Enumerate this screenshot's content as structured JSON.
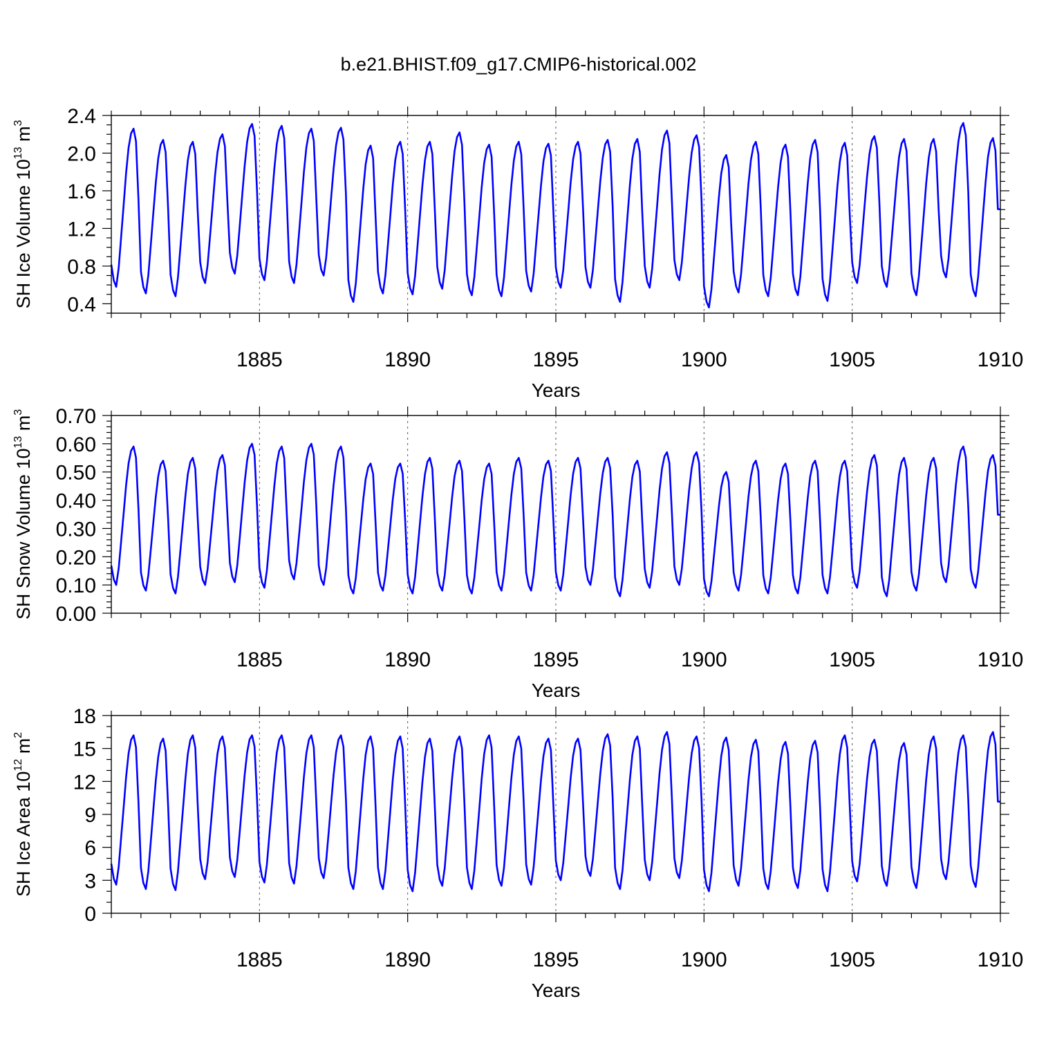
{
  "title": "b.e21.BHIST.f09_g17.CMIP6-historical.002",
  "colors": {
    "series": "#0000ff",
    "axis": "#000000",
    "grid": "#555555"
  },
  "chart_data": [
    {
      "type": "line",
      "name": "ice-volume",
      "ylabel": {
        "main": "SH Ice Volume 10",
        "sup": "13",
        "unit": " m",
        "unit_sup": "3"
      },
      "xlabel": "Years",
      "xlim": [
        1880.0,
        1910.0
      ],
      "ylim": [
        0.3,
        2.4
      ],
      "yticks": [
        "0.4",
        "0.8",
        "1.2",
        "1.6",
        "2.0",
        "2.4"
      ],
      "ytick_values": [
        0.4,
        0.8,
        1.2,
        1.6,
        2.0,
        2.4
      ],
      "yminor_step": 0.1,
      "xticks": [
        "1885",
        "1890",
        "1895",
        "1900",
        "1905",
        "1910"
      ],
      "xtick_values": [
        1885,
        1890,
        1895,
        1900,
        1905,
        1910
      ],
      "grid": "dashed vertical at major x ticks",
      "annual": {
        "min": [
          0.58,
          0.51,
          0.48,
          0.62,
          0.72,
          0.65,
          0.62,
          0.7,
          0.42,
          0.51,
          0.5,
          0.56,
          0.49,
          0.48,
          0.53,
          0.57,
          0.57,
          0.42,
          0.57,
          0.65,
          0.36,
          0.52,
          0.48,
          0.49,
          0.43,
          0.62,
          0.58,
          0.49,
          0.68,
          0.48
        ],
        "max": [
          2.26,
          2.14,
          2.12,
          2.2,
          2.31,
          2.29,
          2.26,
          2.27,
          2.08,
          2.12,
          2.12,
          2.22,
          2.09,
          2.12,
          2.1,
          2.12,
          2.14,
          2.15,
          2.24,
          2.19,
          1.98,
          2.12,
          2.09,
          2.14,
          2.11,
          2.18,
          2.15,
          2.15,
          2.32,
          2.16
        ]
      }
    },
    {
      "type": "line",
      "name": "snow-volume",
      "ylabel": {
        "main": "SH Snow Volume 10",
        "sup": "13",
        "unit": " m",
        "unit_sup": "3"
      },
      "xlabel": "Years",
      "xlim": [
        1880.0,
        1910.0
      ],
      "ylim": [
        0.0,
        0.7
      ],
      "yticks": [
        "0.00",
        "0.10",
        "0.20",
        "0.30",
        "0.40",
        "0.50",
        "0.60",
        "0.70"
      ],
      "ytick_values": [
        0.0,
        0.1,
        0.2,
        0.3,
        0.4,
        0.5,
        0.6,
        0.7
      ],
      "yminor_step": 0.02,
      "xticks": [
        "1885",
        "1890",
        "1895",
        "1900",
        "1905",
        "1910"
      ],
      "xtick_values": [
        1885,
        1890,
        1895,
        1900,
        1905,
        1910
      ],
      "grid": "dashed vertical at major x ticks",
      "annual": {
        "min": [
          0.1,
          0.08,
          0.07,
          0.1,
          0.11,
          0.09,
          0.12,
          0.1,
          0.07,
          0.08,
          0.07,
          0.08,
          0.07,
          0.08,
          0.08,
          0.08,
          0.1,
          0.06,
          0.09,
          0.1,
          0.06,
          0.08,
          0.07,
          0.07,
          0.07,
          0.09,
          0.06,
          0.08,
          0.11,
          0.09
        ],
        "max": [
          0.59,
          0.54,
          0.55,
          0.56,
          0.6,
          0.59,
          0.6,
          0.59,
          0.53,
          0.53,
          0.55,
          0.54,
          0.53,
          0.55,
          0.54,
          0.55,
          0.55,
          0.54,
          0.57,
          0.57,
          0.5,
          0.54,
          0.53,
          0.54,
          0.54,
          0.56,
          0.55,
          0.55,
          0.59,
          0.56
        ]
      }
    },
    {
      "type": "line",
      "name": "ice-area",
      "ylabel": {
        "main": "SH Ice Area 10",
        "sup": "12",
        "unit": " m",
        "unit_sup": "2"
      },
      "xlabel": "Years",
      "xlim": [
        1880.0,
        1910.0
      ],
      "ylim": [
        0,
        18
      ],
      "yticks": [
        "0",
        "3",
        "6",
        "9",
        "12",
        "15",
        "18"
      ],
      "ytick_values": [
        0,
        3,
        6,
        9,
        12,
        15,
        18
      ],
      "yminor_step": 1,
      "xticks": [
        "1885",
        "1890",
        "1895",
        "1900",
        "1905",
        "1910"
      ],
      "xtick_values": [
        1885,
        1890,
        1895,
        1900,
        1905,
        1910
      ],
      "grid": "dashed vertical at major x ticks",
      "annual": {
        "min": [
          2.6,
          2.2,
          2.1,
          3.1,
          3.3,
          2.8,
          2.7,
          3.2,
          2.2,
          2.2,
          2.0,
          2.5,
          2.2,
          2.5,
          2.6,
          3.0,
          3.4,
          2.2,
          3.0,
          3.2,
          2.0,
          2.5,
          2.2,
          2.3,
          2.0,
          2.9,
          2.5,
          2.3,
          3.1,
          2.4
        ],
        "max": [
          16.2,
          15.9,
          16.2,
          16.1,
          16.2,
          16.2,
          16.2,
          16.2,
          16.1,
          16.1,
          15.9,
          16.1,
          16.2,
          16.1,
          15.9,
          15.9,
          16.3,
          16.1,
          16.5,
          16.1,
          16.0,
          15.8,
          15.6,
          15.7,
          16.2,
          15.8,
          15.5,
          16.1,
          16.2,
          16.5
        ]
      }
    }
  ]
}
